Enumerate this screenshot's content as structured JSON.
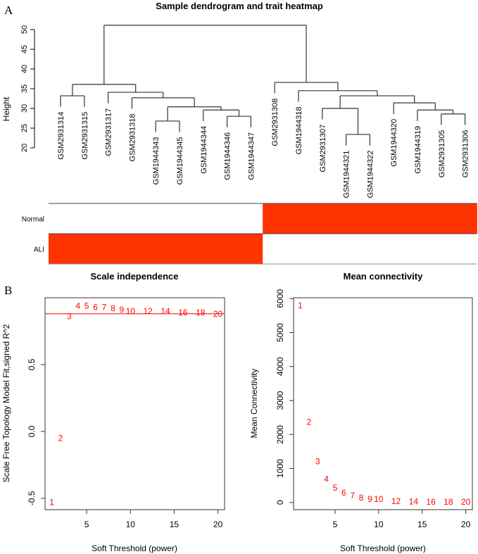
{
  "panel_labels": {
    "a": "A",
    "b": "B"
  },
  "colors": {
    "trait_fill": "#ff3300",
    "points": "#ff0000",
    "threshold_line": "#ff0000",
    "tree": "#333333"
  },
  "chart_data": [
    {
      "type": "dendrogram",
      "title": "Sample dendrogram and trait heatmap",
      "ylabel": "Height",
      "ylim": [
        20,
        52
      ],
      "yticks": [
        20,
        25,
        30,
        35,
        40,
        45,
        50
      ],
      "leaf_hang": 2.8,
      "leaves": [
        "GSM2931314",
        "GSM2931315",
        "GSM2931317",
        "GSM2931318",
        "GSM1944343",
        "GSM1944345",
        "GSM1944344",
        "GSM1944346",
        "GSM1944347",
        "GSM2931308",
        "GSM1944318",
        "GSM2931307",
        "GSM1944321",
        "GSM1944322",
        "GSM1944320",
        "GSM1944319",
        "GSM2931305",
        "GSM2931306"
      ],
      "tree": {
        "h": 51.1,
        "c": [
          {
            "h": 36.1,
            "c": [
              {
                "h": 33.2,
                "c": [
                  0,
                  1
                ]
              },
              {
                "h": 34.1,
                "c": [
                  2,
                  {
                    "h": 32.7,
                    "c": [
                      3,
                      {
                        "h": 30.4,
                        "c": [
                          {
                            "h": 26.8,
                            "c": [
                              4,
                              5
                            ]
                          },
                          {
                            "h": 29.6,
                            "c": [
                              6,
                              {
                                "h": 28.0,
                                "c": [
                                  7,
                                  8
                                ]
                              }
                            ]
                          }
                        ]
                      }
                    ]
                  }
                ]
              }
            ]
          },
          {
            "h": 36.6,
            "c": [
              9,
              {
                "h": 34.5,
                "c": [
                  10,
                  {
                    "h": 33.2,
                    "c": [
                      {
                        "h": 30.0,
                        "c": [
                          11,
                          {
                            "h": 23.4,
                            "c": [
                              12,
                              13
                            ]
                          }
                        ]
                      },
                      {
                        "h": 31.4,
                        "c": [
                          14,
                          {
                            "h": 29.6,
                            "c": [
                              15,
                              {
                                "h": 28.6,
                                "c": [
                                  16,
                                  17
                                ]
                              }
                            ]
                          }
                        ]
                      }
                    ]
                  }
                ]
              }
            ]
          }
        ]
      },
      "traits": [
        {
          "name": "Normal",
          "values": [
            0,
            0,
            0,
            0,
            0,
            0,
            0,
            0,
            0,
            1,
            1,
            1,
            1,
            1,
            1,
            1,
            1,
            1
          ]
        },
        {
          "name": "ALI",
          "values": [
            1,
            1,
            1,
            1,
            1,
            1,
            1,
            1,
            1,
            0,
            0,
            0,
            0,
            0,
            0,
            0,
            0,
            0
          ]
        }
      ]
    },
    {
      "type": "scatter",
      "title": "Scale independence",
      "xlabel": "Soft Threshold (power)",
      "ylabel": "Scale Free Topology Model Fit,signed R^2",
      "xlim": [
        0.24,
        20.76
      ],
      "ylim": [
        -0.585,
        1.0
      ],
      "xticks": [
        5,
        10,
        15,
        20
      ],
      "yticks": [
        -0.5,
        0.0,
        0.5
      ],
      "ytick_labels": [
        "-0.5",
        "0.0",
        "0.5"
      ],
      "hline": 0.88,
      "x": [
        1,
        2,
        3,
        4,
        5,
        6,
        7,
        8,
        9,
        10,
        12,
        14,
        16,
        18,
        20
      ],
      "y": [
        -0.53,
        -0.05,
        0.86,
        0.94,
        0.94,
        0.93,
        0.93,
        0.92,
        0.91,
        0.9,
        0.9,
        0.9,
        0.89,
        0.89,
        0.88
      ],
      "point_labels": [
        "1",
        "2",
        "3",
        "4",
        "5",
        "6",
        "7",
        "8",
        "9",
        "10",
        "12",
        "14",
        "16",
        "18",
        "20"
      ]
    },
    {
      "type": "scatter",
      "title": "Mean connectivity",
      "xlabel": "Soft Threshold (power)",
      "ylabel": "Mean Connectivity",
      "xlim": [
        0.24,
        20.76
      ],
      "ylim": [
        -211,
        6024
      ],
      "xticks": [
        5,
        10,
        15,
        20
      ],
      "yticks": [
        0,
        1000,
        2000,
        3000,
        4000,
        5000,
        6000
      ],
      "ytick_labels": [
        "0",
        "1000",
        "2000",
        "3000",
        "4000",
        "5000",
        "6000"
      ],
      "x": [
        1,
        2,
        3,
        4,
        5,
        6,
        7,
        8,
        9,
        10,
        12,
        14,
        16,
        18,
        20
      ],
      "y": [
        5793,
        2367,
        1204,
        685,
        436,
        290,
        208,
        145,
        104,
        100,
        42,
        25,
        20,
        18,
        15
      ],
      "point_labels": [
        "1",
        "2",
        "3",
        "4",
        "5",
        "6",
        "7",
        "8",
        "9",
        "10",
        "12",
        "14",
        "16",
        "18",
        "20"
      ]
    }
  ]
}
